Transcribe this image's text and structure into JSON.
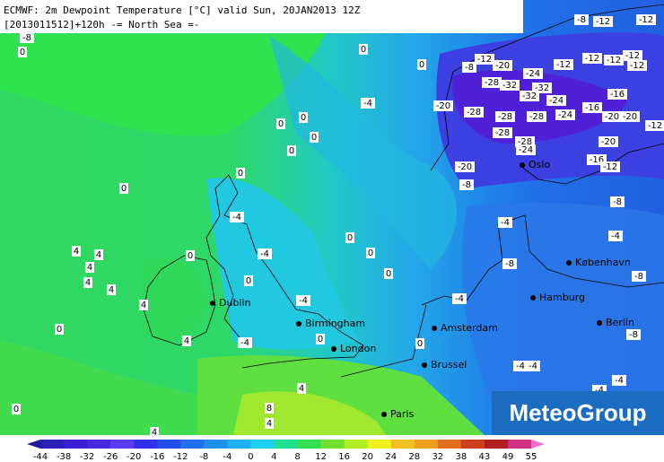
{
  "header": {
    "line1": "ECMWF: 2m Dewpoint Temperature [°C] valid Sun, 20JAN2013 12Z",
    "line2": "[2013011512]+120h  -= North Sea =-"
  },
  "logo": "MeteoGroup",
  "cities": [
    "Oslo",
    "København",
    "Hamburg",
    "Berlin",
    "Amsterdam",
    "Brussel",
    "Paris",
    "London",
    "Birmingham",
    "Dublin"
  ],
  "contour_labels": [
    -8,
    0,
    0,
    0,
    -4,
    0,
    0,
    0,
    0,
    0,
    0,
    -4,
    0,
    0,
    0,
    -4,
    0,
    0,
    4,
    4,
    4,
    4,
    4,
    4,
    -4,
    0,
    4,
    -4,
    0,
    0,
    -4,
    -4,
    -8,
    -4,
    -8,
    -8,
    -8,
    -4,
    -4,
    -4,
    -4,
    0,
    4,
    8,
    4,
    4,
    -8,
    -20,
    -8,
    -12,
    -12,
    -8,
    -12,
    -20,
    -24,
    -12,
    -12,
    -12,
    -12,
    -12,
    -28,
    -32,
    -32,
    -32,
    -24,
    -16,
    -20,
    -28,
    -28,
    -28,
    -24,
    -16,
    -20,
    -20,
    -12,
    -28,
    -28,
    -24,
    -20,
    -16,
    -12
  ],
  "legend": {
    "labels": [
      -44,
      -38,
      -32,
      -26,
      -20,
      -16,
      -12,
      -8,
      -4,
      0,
      4,
      8,
      12,
      16,
      20,
      24,
      28,
      32,
      38,
      43,
      49,
      55
    ],
    "colors": [
      "#1a1a9a",
      "#2a20b8",
      "#3a20d0",
      "#4a28e0",
      "#5a3cf0",
      "#3030e8",
      "#2050e8",
      "#2070f0",
      "#2090f0",
      "#20b0f0",
      "#20d0f0",
      "#20e090",
      "#30e050",
      "#70e030",
      "#b0f020",
      "#f0f020",
      "#f0c020",
      "#f0a020",
      "#e07020",
      "#d04020",
      "#b02020",
      "#d03080",
      "#f070d0"
    ]
  }
}
